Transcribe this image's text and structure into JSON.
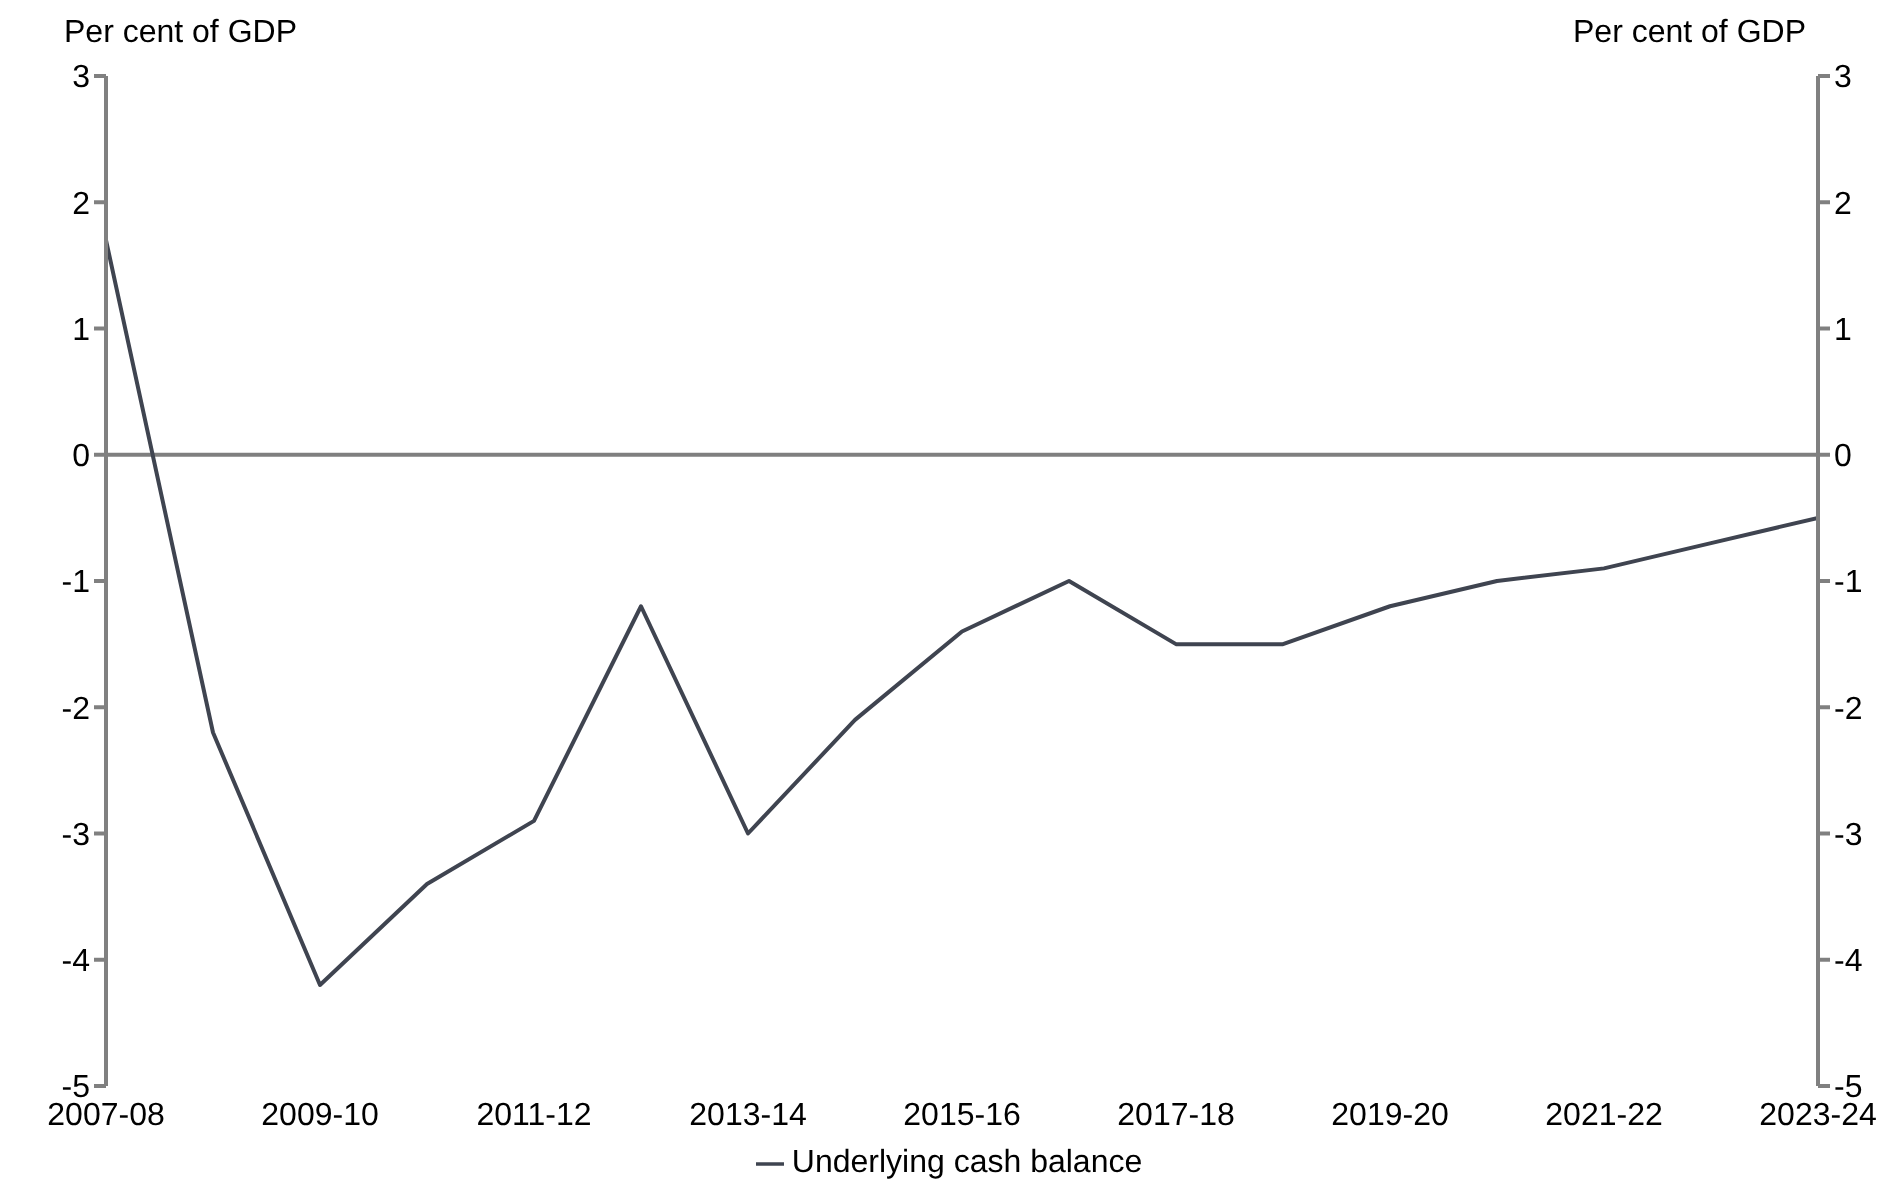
{
  "chart_data": {
    "type": "line",
    "ylabel": "Per cent of GDP",
    "y2label": "Per cent of GDP",
    "categories": [
      "2007-08",
      null,
      "2009-10",
      null,
      "2011-12",
      null,
      "2013-14",
      null,
      "2015-16",
      null,
      "2017-18",
      null,
      "2019-20",
      null,
      "2021-22",
      null,
      "2023-24"
    ],
    "series": [
      {
        "name": "Underlying cash balance",
        "color": "#3f4450",
        "values": [
          1.7,
          -2.2,
          -4.2,
          -3.4,
          -2.9,
          -1.2,
          -3.0,
          -2.1,
          -1.4,
          -1.0,
          -1.5,
          -1.5,
          -1.2,
          -1.0,
          -0.9,
          -0.7,
          -0.5
        ]
      }
    ],
    "ylim": [
      -5,
      3
    ],
    "yticks": [
      -5,
      -4,
      -3,
      -2,
      -1,
      0,
      1,
      2,
      3
    ],
    "y2lim": [
      -5,
      3
    ],
    "y2ticks": [
      -5,
      -4,
      -3,
      -2,
      -1,
      0,
      1,
      2,
      3
    ],
    "ref_lines": [
      {
        "axis": "y",
        "value": 0,
        "color": "#7f7f7f"
      }
    ],
    "grid": false,
    "legend": "bottom",
    "marker": "none",
    "line_style": "solid"
  }
}
